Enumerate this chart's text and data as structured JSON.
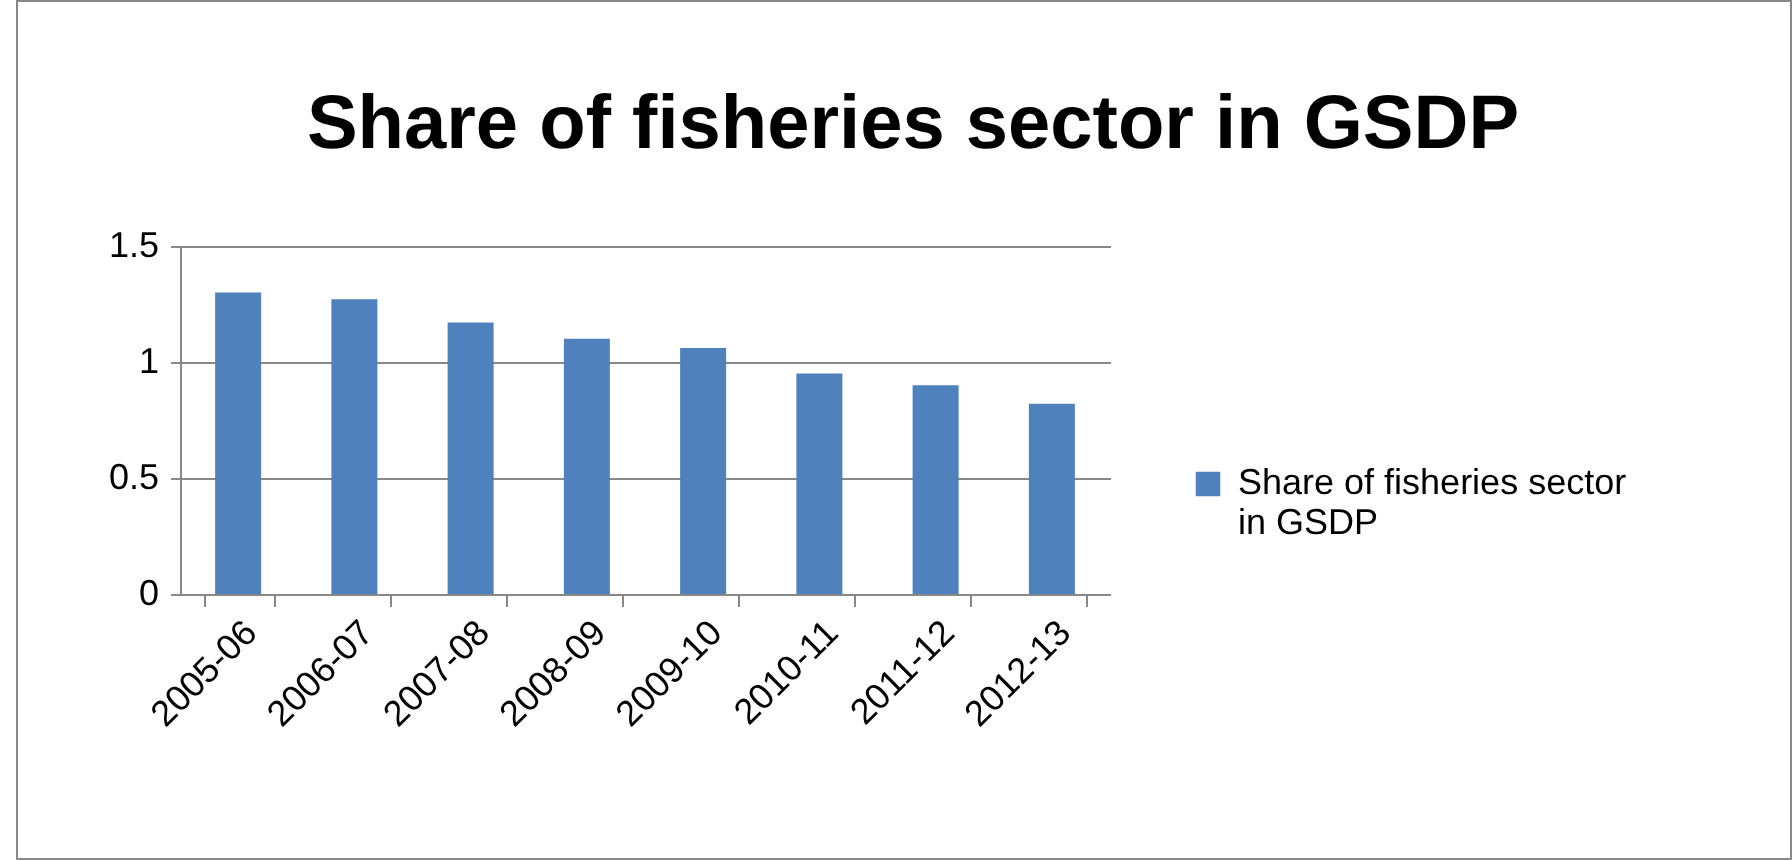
{
  "chart_data": {
    "type": "bar",
    "title": "Share of fisheries sector in GSDP",
    "categories": [
      "2005-06",
      "2006-07",
      "2007-08",
      "2008-09",
      "2009-10",
      "2010-11",
      "2011-12",
      "2012-13"
    ],
    "series": [
      {
        "name": "Share of fisheries sector in GSDP",
        "color": "#4f81bd",
        "values": [
          1.3,
          1.27,
          1.17,
          1.1,
          1.06,
          0.95,
          0.9,
          0.82
        ]
      }
    ],
    "ylim": [
      0,
      1.5
    ],
    "yticks": [
      0,
      0.5,
      1,
      1.5
    ],
    "grid": "y",
    "legend": "right"
  }
}
